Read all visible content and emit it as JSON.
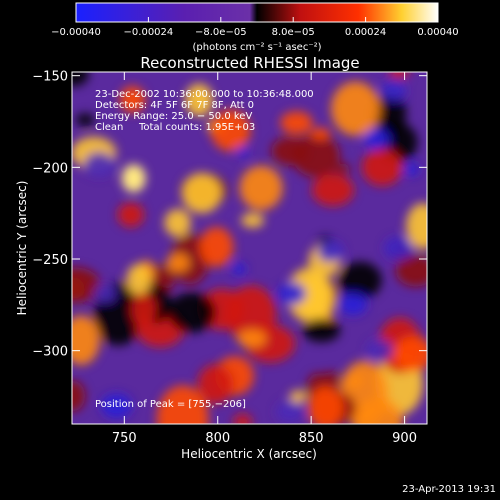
{
  "chart_data": {
    "type": "heatmap",
    "title": "Reconstructed RHESSI Image",
    "xlabel": "Heliocentric X (arcsec)",
    "ylabel": "Heliocentric Y (arcsec)",
    "xlim": [
      722,
      912
    ],
    "ylim": [
      -340,
      -148
    ],
    "x_ticks": [
      750,
      800,
      850,
      900
    ],
    "y_ticks": [
      -300,
      -250,
      -200,
      -150
    ],
    "x_tick_labels": [
      "750",
      "800",
      "850",
      "900"
    ],
    "y_tick_labels": [
      "−300",
      "−250",
      "−200",
      "−150"
    ],
    "colorbar": {
      "range": [
        -0.0004,
        0.0004
      ],
      "ticks": [
        -0.0004,
        -0.00024,
        -8e-05,
        8e-05,
        0.00024,
        0.0004
      ],
      "tick_labels": [
        "−0.00040",
        "−0.00024",
        "−8.0e−05",
        "8.0e−05",
        "0.00024",
        "0.00040"
      ],
      "unit_label": "(photons cm⁻² s⁻¹ asec⁻²)",
      "colors": [
        "#1a20ff",
        "#5a1fb0",
        "#6b30a8",
        "#000000",
        "#c01010",
        "#ff3000",
        "#ffd030",
        "#ffffff"
      ]
    },
    "annotations": {
      "time": "23-Dec-2002 10:36:00.000 to 10:36:48.000",
      "detectors": "Detectors: 4F 5F 6F 7F 8F, Att 0",
      "energy": "Energy Range: 25.0 − 50.0 keV",
      "method": "Clean",
      "counts": "Total counts: 1.95E+03",
      "peak": "Position of Peak = [755,−206]"
    },
    "peak": [
      755,
      -206
    ],
    "grid": false
  },
  "footer": {
    "timestamp": "23-Apr-2013 19:31"
  }
}
